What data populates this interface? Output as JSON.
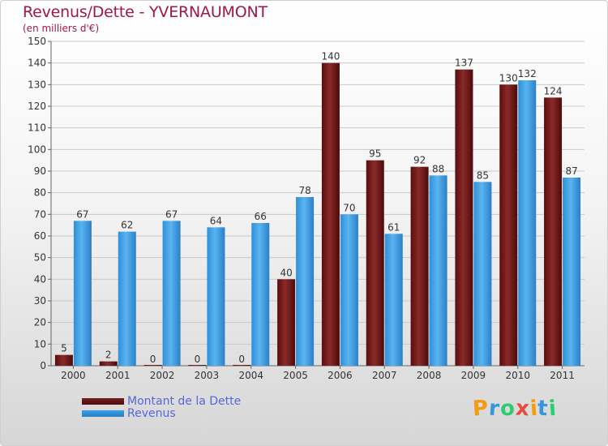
{
  "header": {
    "title": "Revenus/Dette - YVERNAUMONT",
    "subtitle": "(en milliers d'€)"
  },
  "legend": {
    "items": [
      {
        "label": "Montant de la Dette",
        "color": "#7a1f1f"
      },
      {
        "label": "Revenus",
        "color": "#3a9ee6"
      }
    ]
  },
  "logo": {
    "text": "Proxiti",
    "letters": [
      {
        "ch": "P",
        "color": "#f39c12"
      },
      {
        "ch": "r",
        "color": "#3498db"
      },
      {
        "ch": "o",
        "color": "#2ecc71"
      },
      {
        "ch": "x",
        "color": "#e74c3c"
      },
      {
        "ch": "i",
        "color": "#f39c12"
      },
      {
        "ch": "t",
        "color": "#3498db"
      },
      {
        "ch": "i",
        "color": "#2ecc71"
      }
    ]
  },
  "chart_data": {
    "type": "bar",
    "title": "Revenus/Dette - YVERNAUMONT",
    "subtitle": "(en milliers d'€)",
    "xlabel": "",
    "ylabel": "",
    "categories": [
      "2000",
      "2001",
      "2002",
      "2003",
      "2004",
      "2005",
      "2006",
      "2007",
      "2008",
      "2009",
      "2010",
      "2011"
    ],
    "series": [
      {
        "name": "Montant de la Dette",
        "color": "#7a1f1f",
        "values": [
          5,
          2,
          0,
          0,
          0,
          40,
          140,
          95,
          92,
          137,
          130,
          124
        ]
      },
      {
        "name": "Revenus",
        "color": "#3a9ee6",
        "values": [
          67,
          62,
          67,
          64,
          66,
          78,
          70,
          61,
          88,
          85,
          132,
          87
        ]
      }
    ],
    "ylim": [
      0,
      150
    ],
    "yticks": [
      0,
      10,
      20,
      30,
      40,
      50,
      60,
      70,
      80,
      90,
      100,
      110,
      120,
      130,
      140,
      150
    ],
    "grid": true,
    "legend_position": "bottom-left"
  }
}
